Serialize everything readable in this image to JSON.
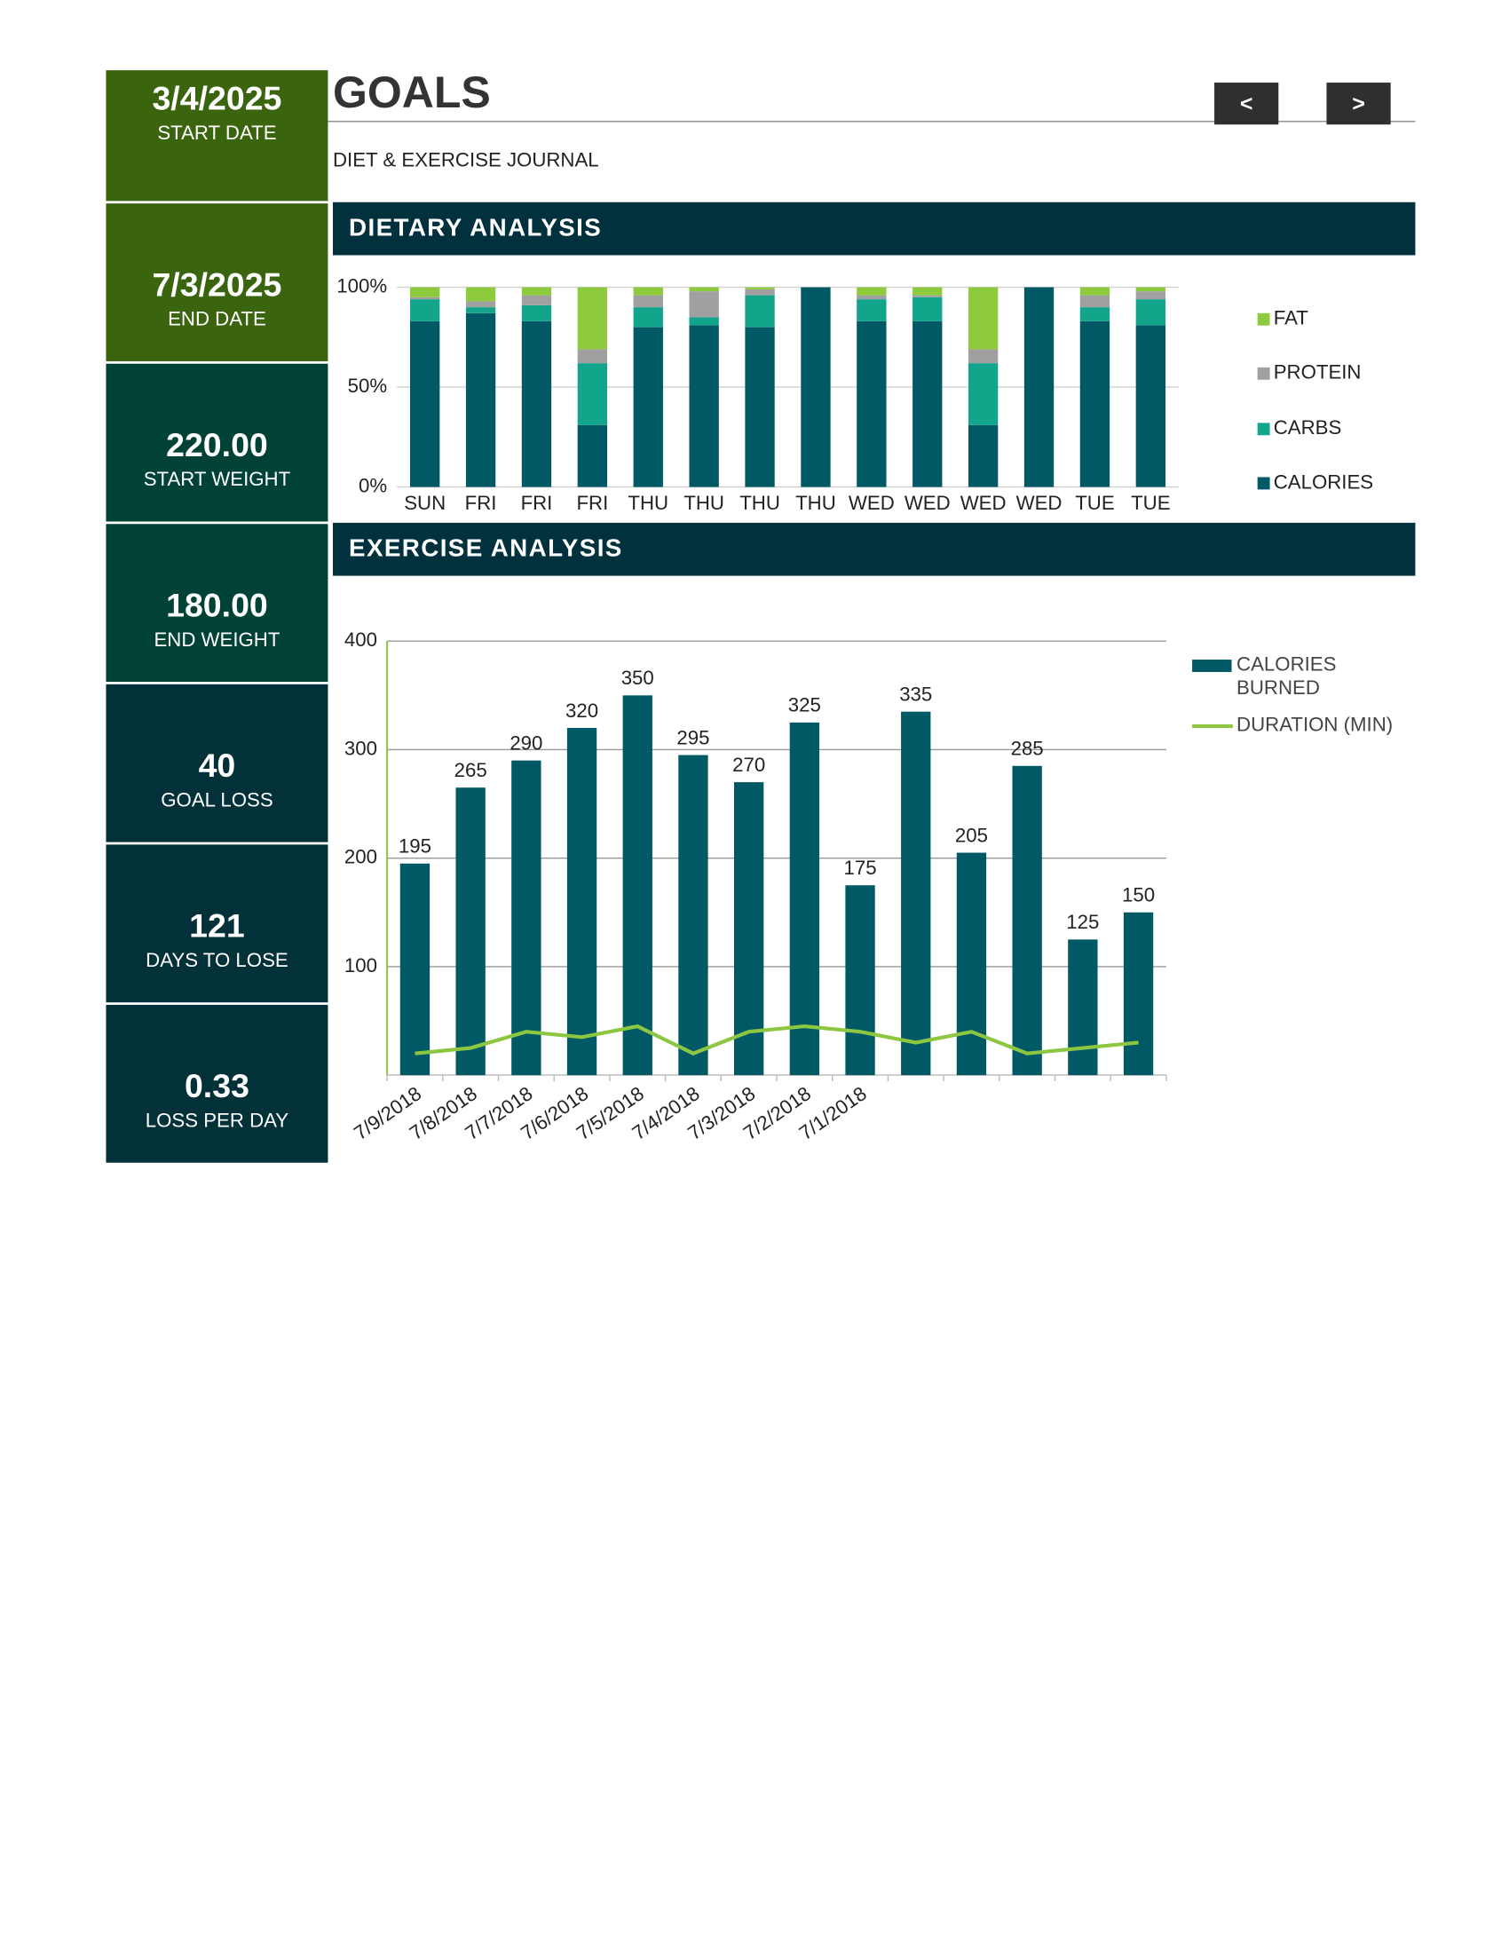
{
  "header": {
    "title": "GOALS",
    "subtitle": "DIET & EXERCISE JOURNAL",
    "prev": "<",
    "next": ">"
  },
  "sidebar": [
    {
      "value": "3/4/2025",
      "label": "START DATE"
    },
    {
      "value": "7/3/2025",
      "label": "END DATE"
    },
    {
      "value": "220.00",
      "label": "START WEIGHT"
    },
    {
      "value": "180.00",
      "label": "END WEIGHT"
    },
    {
      "value": "40",
      "label": "GOAL LOSS"
    },
    {
      "value": "121",
      "label": "DAYS TO LOSE"
    },
    {
      "value": "0.33",
      "label": "LOSS PER DAY"
    }
  ],
  "chart_data": [
    {
      "type": "bar",
      "title": "DIETARY ANALYSIS",
      "stacked": true,
      "categories": [
        "SUN",
        "FRI",
        "FRI",
        "FRI",
        "THU",
        "THU",
        "THU",
        "THU",
        "WED",
        "WED",
        "WED",
        "WED",
        "TUE",
        "TUE"
      ],
      "series": [
        {
          "name": "CALORIES",
          "color": "#015965",
          "values": [
            83,
            87,
            83,
            31,
            80,
            81,
            80,
            100,
            83,
            83,
            31,
            100,
            83,
            81
          ]
        },
        {
          "name": "CARBS",
          "color": "#12a58b",
          "values": [
            11,
            3,
            8,
            31,
            10,
            4,
            16,
            0,
            11,
            12,
            31,
            0,
            7,
            13
          ]
        },
        {
          "name": "PROTEIN",
          "color": "#a0a0a0",
          "values": [
            1,
            3,
            5,
            7,
            6,
            13,
            3,
            0,
            2,
            1,
            7,
            0,
            6,
            4
          ]
        },
        {
          "name": "FAT",
          "color": "#8dcb3c",
          "values": [
            5,
            7,
            4,
            31,
            4,
            2,
            1,
            0,
            4,
            4,
            31,
            0,
            4,
            2
          ]
        }
      ],
      "ylim": [
        0,
        100
      ],
      "yticks": [
        {
          "value": 0,
          "label": "0%"
        },
        {
          "value": 50,
          "label": "50%"
        },
        {
          "value": 100,
          "label": "100%"
        }
      ],
      "grid": true,
      "legend": "right"
    },
    {
      "type": "bar",
      "title": "EXERCISE ANALYSIS",
      "categories": [
        "7/9/2018",
        "7/8/2018",
        "7/7/2018",
        "7/6/2018",
        "7/5/2018",
        "7/4/2018",
        "7/3/2018",
        "7/2/2018",
        "7/1/2018",
        null,
        null,
        null,
        null,
        null
      ],
      "series": [
        {
          "name": "CALORIES BURNED",
          "type": "bar",
          "color": "#015965",
          "values": [
            195,
            265,
            290,
            320,
            350,
            295,
            270,
            325,
            175,
            335,
            205,
            285,
            125,
            150
          ]
        },
        {
          "name": "DURATION (MIN)",
          "type": "line",
          "color": "#8dc641",
          "values": [
            20,
            25,
            40,
            35,
            45,
            20,
            40,
            45,
            40,
            30,
            40,
            20,
            25,
            30
          ]
        }
      ],
      "ylim": [
        0,
        400
      ],
      "yticks": [
        100,
        200,
        300,
        400
      ],
      "grid": true,
      "legend": "right",
      "data_labels": true
    }
  ]
}
